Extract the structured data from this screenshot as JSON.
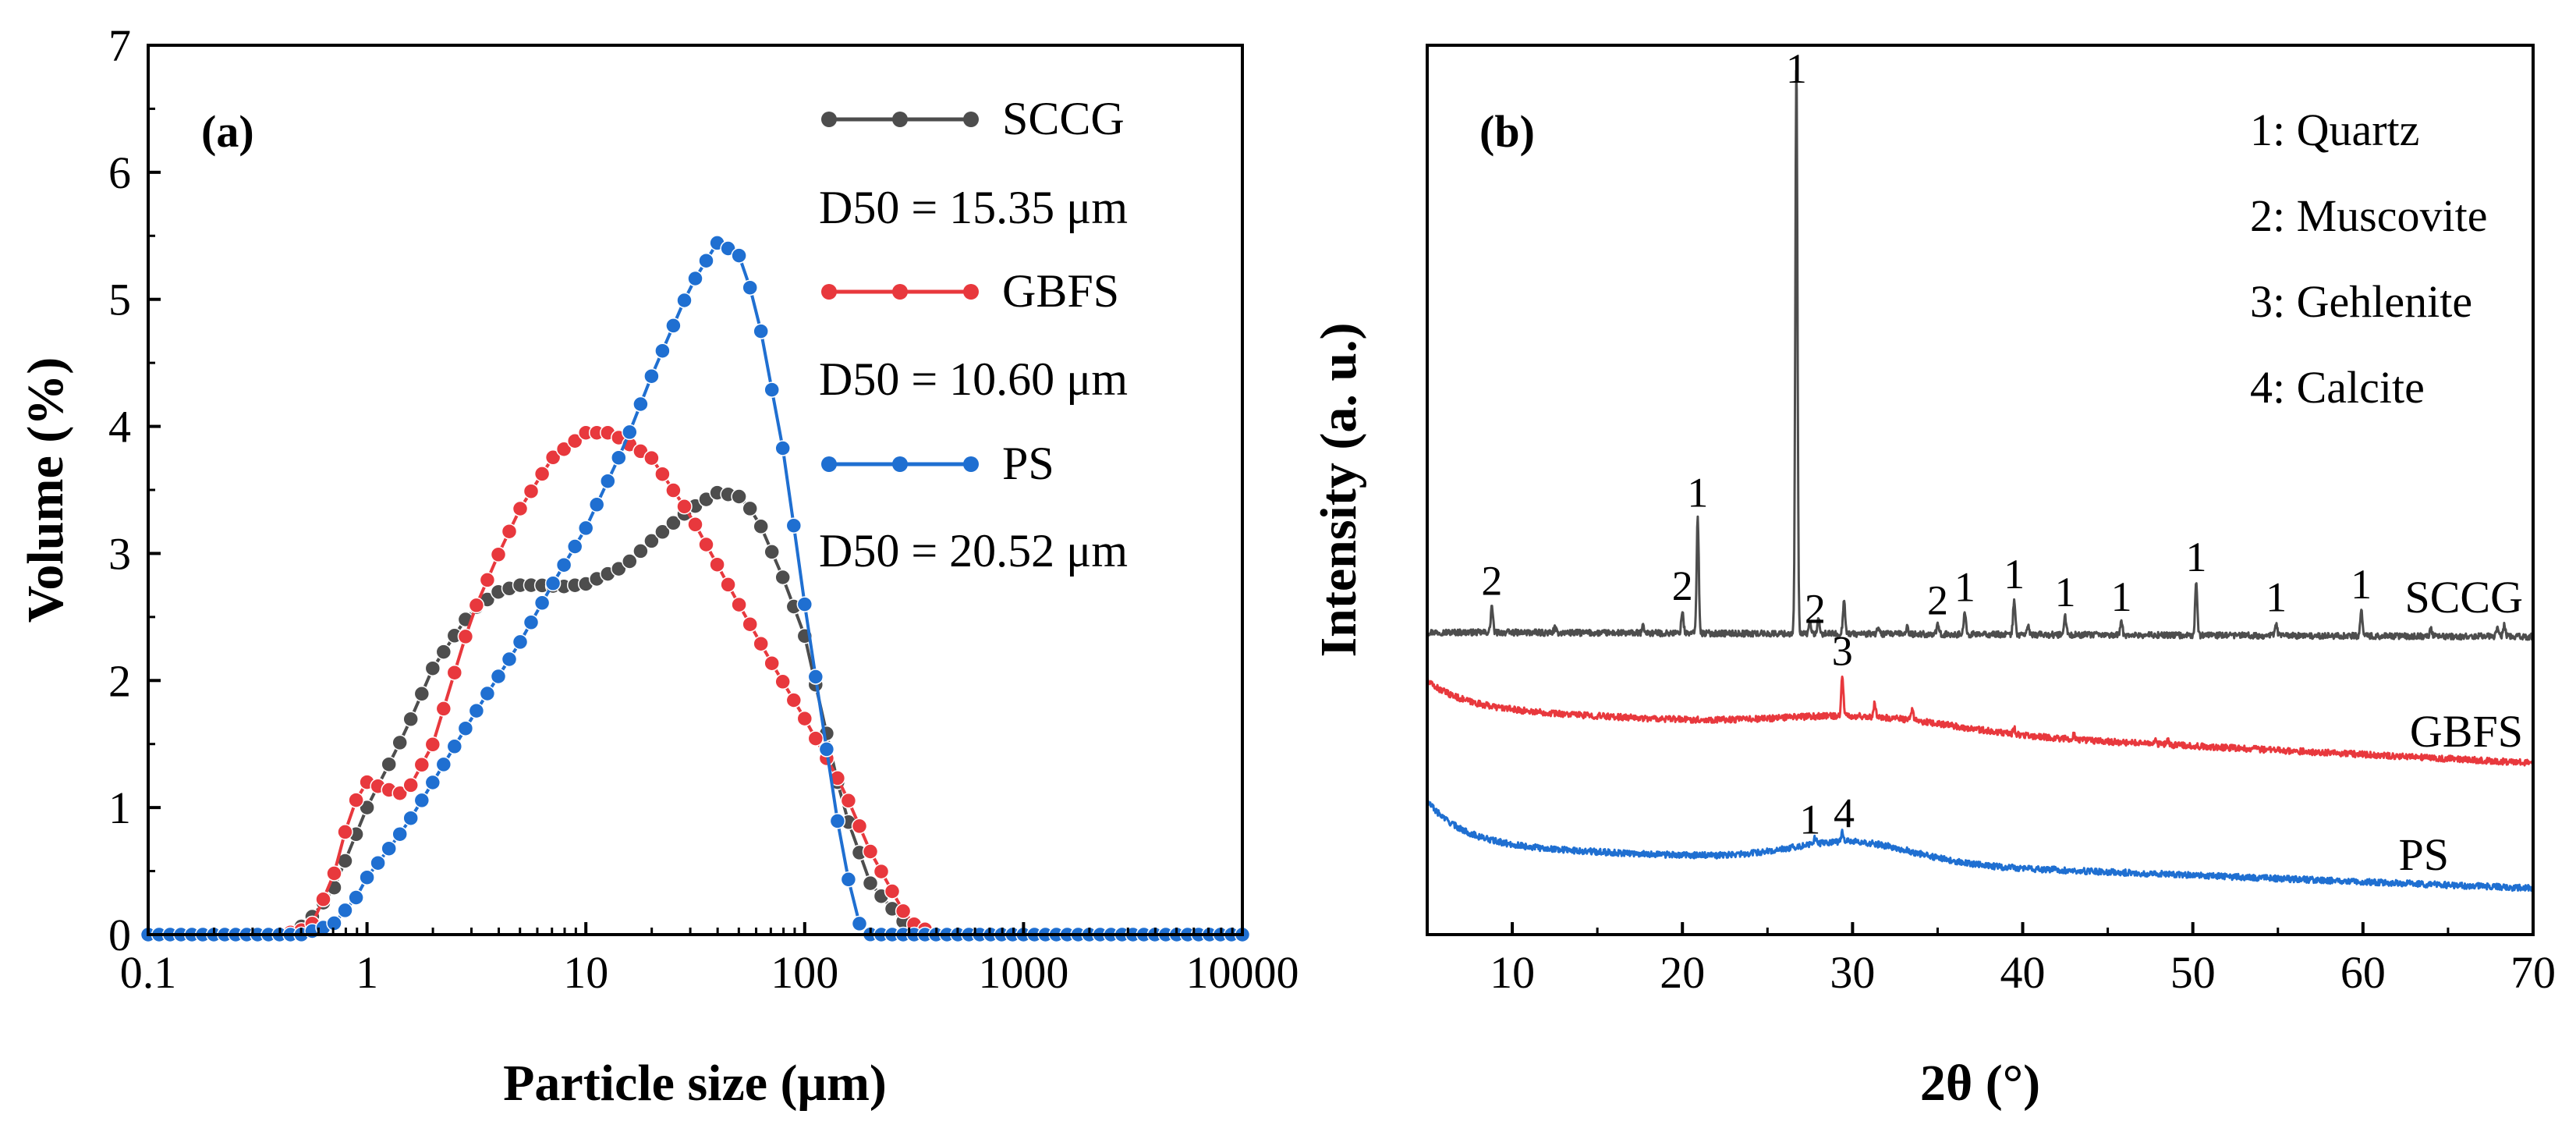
{
  "chart_data": [
    {
      "type": "line",
      "panel_label": "(a)",
      "xlabel": "Particle size (μm)",
      "ylabel": "Volume (%)",
      "xscale": "log",
      "xlim": [
        0.1,
        10000
      ],
      "ylim": [
        0,
        7
      ],
      "xticks": [
        0.1,
        1,
        10,
        100,
        1000,
        10000
      ],
      "xtick_labels": [
        "0.1",
        "1",
        "10",
        "100",
        "1000",
        "10000"
      ],
      "yticks": [
        0,
        1,
        2,
        3,
        4,
        5,
        6,
        7
      ],
      "ytick_labels": [
        "0",
        "1",
        "2",
        "3",
        "4",
        "5",
        "6",
        "7"
      ],
      "legend_position": "top-right",
      "series": [
        {
          "name": "SCCG",
          "note": "D50 = 15.35 μm",
          "color": "#4d4d4d",
          "points": [
            [
              0.1,
              0
            ],
            [
              0.3,
              0
            ],
            [
              0.45,
              0
            ],
            [
              0.55,
              0.12
            ],
            [
              0.7,
              0.35
            ],
            [
              1.0,
              1.0
            ],
            [
              1.5,
              1.6
            ],
            [
              2.0,
              2.1
            ],
            [
              3.0,
              2.55
            ],
            [
              4.0,
              2.7
            ],
            [
              5.0,
              2.75
            ],
            [
              6.0,
              2.75
            ],
            [
              8.0,
              2.74
            ],
            [
              10.0,
              2.76
            ],
            [
              15.0,
              2.9
            ],
            [
              20.0,
              3.1
            ],
            [
              30.0,
              3.35
            ],
            [
              40.0,
              3.48
            ],
            [
              50.0,
              3.45
            ],
            [
              60.0,
              3.3
            ],
            [
              80.0,
              2.8
            ],
            [
              100.0,
              2.35
            ],
            [
              150.0,
              1.0
            ],
            [
              200.0,
              0.4
            ],
            [
              300.0,
              0.05
            ],
            [
              400.0,
              0
            ],
            [
              1000.0,
              0
            ],
            [
              10000.0,
              0
            ]
          ]
        },
        {
          "name": "GBFS",
          "note": "D50 = 10.60 μm",
          "color": "#e8383d",
          "points": [
            [
              0.1,
              0
            ],
            [
              0.4,
              0
            ],
            [
              0.55,
              0.05
            ],
            [
              0.7,
              0.45
            ],
            [
              0.85,
              1.0
            ],
            [
              1.0,
              1.2
            ],
            [
              1.2,
              1.15
            ],
            [
              1.5,
              1.1
            ],
            [
              2.0,
              1.5
            ],
            [
              3.0,
              2.5
            ],
            [
              4.0,
              3.0
            ],
            [
              5.0,
              3.35
            ],
            [
              7.0,
              3.75
            ],
            [
              10.0,
              3.95
            ],
            [
              13.0,
              3.95
            ],
            [
              20.0,
              3.75
            ],
            [
              30.0,
              3.3
            ],
            [
              50.0,
              2.6
            ],
            [
              70.0,
              2.15
            ],
            [
              100.0,
              1.7
            ],
            [
              150.0,
              1.15
            ],
            [
              200.0,
              0.65
            ],
            [
              300.0,
              0.1
            ],
            [
              400.0,
              0
            ],
            [
              1000.0,
              0
            ],
            [
              10000.0,
              0
            ]
          ]
        },
        {
          "name": "PS",
          "note": "D50 = 20.52 μm",
          "color": "#1f6fd1",
          "points": [
            [
              0.1,
              0
            ],
            [
              0.5,
              0
            ],
            [
              0.7,
              0.08
            ],
            [
              0.9,
              0.3
            ],
            [
              1.0,
              0.45
            ],
            [
              1.5,
              0.85
            ],
            [
              2.0,
              1.2
            ],
            [
              3.0,
              1.7
            ],
            [
              5.0,
              2.3
            ],
            [
              7.0,
              2.75
            ],
            [
              10.0,
              3.2
            ],
            [
              15.0,
              3.85
            ],
            [
              20.0,
              4.4
            ],
            [
              30.0,
              5.1
            ],
            [
              40.0,
              5.45
            ],
            [
              50.0,
              5.35
            ],
            [
              60.0,
              4.95
            ],
            [
              80.0,
              3.8
            ],
            [
              100.0,
              2.6
            ],
            [
              130.0,
              1.3
            ],
            [
              150.0,
              0.6
            ],
            [
              180.0,
              0.05
            ],
            [
              200.0,
              0
            ],
            [
              1000.0,
              0
            ],
            [
              10000.0,
              0
            ]
          ]
        }
      ]
    },
    {
      "type": "line",
      "panel_label": "(b)",
      "xlabel": "2θ (°)",
      "ylabel": "Intensity (a. u.)",
      "xlim": [
        5,
        70
      ],
      "ylim": [
        0,
        100
      ],
      "xticks": [
        10,
        20,
        30,
        40,
        50,
        60,
        70
      ],
      "xtick_labels": [
        "10",
        "20",
        "30",
        "40",
        "50",
        "60",
        "70"
      ],
      "legend_position": "top-right",
      "phase_legend": [
        "1: Quartz",
        "2: Muscovite",
        "3: Gehlenite",
        "4: Calcite"
      ],
      "series": [
        {
          "name": "SCCG",
          "color": "#4d4d4d",
          "baseline_start": 34.0,
          "baseline_end": 33.5,
          "hump": null,
          "peaks": [
            [
              8.8,
              3
            ],
            [
              12.5,
              0.5
            ],
            [
              17.7,
              0.8
            ],
            [
              20.0,
              2.5
            ],
            [
              20.9,
              13
            ],
            [
              26.7,
              64
            ],
            [
              27.5,
              1.2
            ],
            [
              28.0,
              1.5
            ],
            [
              29.5,
              4
            ],
            [
              31.5,
              0.8
            ],
            [
              33.2,
              0.8
            ],
            [
              35.0,
              1
            ],
            [
              36.6,
              2.5
            ],
            [
              39.5,
              4
            ],
            [
              40.3,
              1
            ],
            [
              42.5,
              2
            ],
            [
              45.8,
              1.5
            ],
            [
              50.2,
              6
            ],
            [
              54.9,
              1.5
            ],
            [
              59.9,
              3
            ],
            [
              64.0,
              0.8
            ],
            [
              67.9,
              1
            ],
            [
              68.3,
              1.3
            ]
          ],
          "peak_labels": [
            {
              "text": "2",
              "x": 8.8
            },
            {
              "text": "2",
              "x": 20.0
            },
            {
              "text": "1",
              "x": 20.9
            },
            {
              "text": "1",
              "x": 26.7
            },
            {
              "text": "2",
              "x": 27.8
            },
            {
              "text": "2",
              "x": 35.0
            },
            {
              "text": "1",
              "x": 36.6
            },
            {
              "text": "1",
              "x": 39.5
            },
            {
              "text": "1",
              "x": 42.5
            },
            {
              "text": "1",
              "x": 45.8
            },
            {
              "text": "1",
              "x": 50.2
            },
            {
              "text": "1",
              "x": 54.9
            },
            {
              "text": "1",
              "x": 59.9
            }
          ]
        },
        {
          "name": "GBFS",
          "color": "#e8383d",
          "baseline_start": 25.5,
          "baseline_end": 19.3,
          "start_rise": 3,
          "hump": {
            "center": 31,
            "height": 1.5,
            "width": 7
          },
          "peaks": [
            [
              29.4,
              4.5
            ],
            [
              31.3,
              1.5
            ],
            [
              33.5,
              1.2
            ],
            [
              39.5,
              0.6
            ],
            [
              43.0,
              0.5
            ],
            [
              47.8,
              0.7
            ],
            [
              48.5,
              0.6
            ]
          ],
          "peak_labels": [
            {
              "text": "3",
              "x": 29.4
            }
          ]
        },
        {
          "name": "PS",
          "color": "#1f6fd1",
          "baseline_start": 10.0,
          "baseline_end": 5.2,
          "start_rise": 5,
          "hump": {
            "center": 30,
            "height": 2.3,
            "width": 5
          },
          "peaks": [
            [
              27.8,
              0.7
            ],
            [
              29.4,
              1.2
            ]
          ],
          "peak_labels": [
            {
              "text": "1",
              "x": 27.5
            },
            {
              "text": "4",
              "x": 29.5
            }
          ]
        }
      ]
    }
  ]
}
